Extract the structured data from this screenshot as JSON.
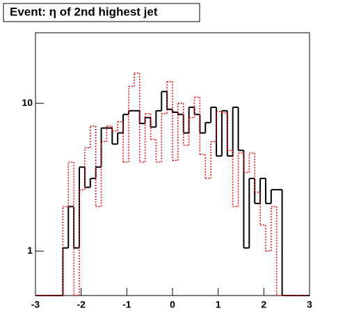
{
  "chart_data": {
    "type": "histogram",
    "title": "Event: η of 2nd highest jet",
    "bins": [
      -3,
      -2.88,
      -2.76,
      -2.64,
      -2.52,
      -2.4,
      -2.28,
      -2.16,
      -2.04,
      -1.92,
      -1.8,
      -1.68,
      -1.56,
      -1.44,
      -1.32,
      -1.2,
      -1.08,
      -0.96,
      -0.84,
      -0.72,
      -0.6,
      -0.48,
      -0.36,
      -0.24,
      -0.12,
      0,
      0.12,
      0.24,
      0.36,
      0.48,
      0.6,
      0.72,
      0.84,
      0.96,
      1.08,
      1.2,
      1.32,
      1.44,
      1.56,
      1.68,
      1.8,
      1.92,
      2.04,
      2.16,
      2.28,
      2.4,
      2.52,
      2.64,
      2.76,
      2.88,
      3
    ],
    "series": [
      {
        "color": "#000000",
        "line_style": "solid",
        "values": [
          0,
          0,
          0,
          0,
          0,
          1.05,
          2.0,
          1.05,
          3.7,
          2.7,
          3.1,
          3.7,
          6.8,
          6.8,
          5.3,
          6.3,
          8.4,
          8.9,
          8.9,
          7.3,
          8.0,
          6.9,
          8.9,
          12,
          9.1,
          8.7,
          8.4,
          6.3,
          9.4,
          8.4,
          6.3,
          7.4,
          9.4,
          4.4,
          8.9,
          4.4,
          9.4,
          4.8,
          1.05,
          3.1,
          2.1,
          3.1,
          2.1,
          2.6,
          2.6,
          0,
          0,
          0,
          0,
          0
        ]
      },
      {
        "color": "#ff0000",
        "line_style": "dotted",
        "values": [
          0,
          0,
          0,
          0,
          0,
          2.0,
          4.0,
          0,
          2.6,
          5.0,
          7.0,
          2.0,
          5.5,
          7.0,
          6.5,
          7.5,
          4.0,
          13,
          16,
          4.0,
          8.5,
          5.7,
          4.0,
          8.5,
          14,
          4.1,
          10,
          5.2,
          8.0,
          11,
          4.5,
          3.1,
          5.5,
          8.8,
          8.6,
          4.8,
          2.0,
          4.6,
          3.4,
          4.6,
          2.5,
          1.5,
          1.0,
          2.0,
          0,
          0,
          0,
          0,
          0,
          0
        ]
      }
    ],
    "xlim": [
      -3,
      3
    ],
    "xticks": [
      -3,
      -2,
      -1,
      0,
      1,
      2,
      3
    ],
    "ylim": [
      0.5,
      30
    ],
    "yticks": [
      1,
      10
    ],
    "log_y": true
  }
}
